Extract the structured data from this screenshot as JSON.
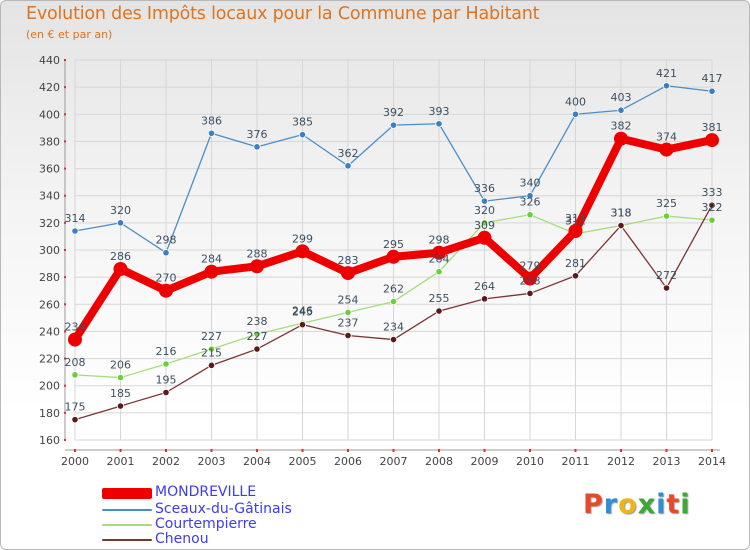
{
  "title": "Evolution des Impôts locaux pour la Commune par Habitant",
  "subtitle": "(en € et par an)",
  "logo": "Proxiti",
  "logo_letters": [
    {
      "ch": "P",
      "color": "#e8492a"
    },
    {
      "ch": "r",
      "color": "#2f8fd6"
    },
    {
      "ch": "o",
      "color": "#f0b417"
    },
    {
      "ch": "x",
      "color": "#3aaa35"
    },
    {
      "ch": "i",
      "color": "#2f8fd6"
    },
    {
      "ch": "t",
      "color": "#e8492a"
    },
    {
      "ch": "i",
      "color": "#3aaa35"
    }
  ],
  "chart_data": {
    "type": "line",
    "categories": [
      "2000",
      "2001",
      "2002",
      "2003",
      "2004",
      "2005",
      "2006",
      "2007",
      "2008",
      "2009",
      "2010",
      "2011",
      "2012",
      "2013",
      "2014"
    ],
    "ylim": [
      160,
      440
    ],
    "yticks": [
      160,
      180,
      200,
      220,
      240,
      260,
      280,
      300,
      320,
      340,
      360,
      380,
      400,
      420,
      440
    ],
    "grid": true,
    "legend_position": "bottom-left",
    "series": [
      {
        "name": "Sceaux-du-Gâtinais",
        "color": "#4a8ec9",
        "marker": "#3a7fc0",
        "labelColor": "#3d4f5f",
        "values": [
          314,
          320,
          298,
          386,
          376,
          385,
          362,
          392,
          393,
          336,
          340,
          400,
          403,
          421,
          417
        ],
        "labels": [
          "314",
          "320",
          "298",
          "386",
          "376",
          "385",
          "362",
          "392",
          "393",
          "336",
          "340",
          "400",
          "403",
          "421",
          "417"
        ]
      },
      {
        "name": "Courtempierre",
        "color": "#a6dc7e",
        "marker": "#6ccf3a",
        "labelColor": "#3d4f5f",
        "values": [
          208,
          206,
          216,
          227,
          238,
          246,
          254,
          262,
          284,
          320,
          326,
          312,
          318,
          325,
          322
        ],
        "labels": [
          "208",
          "206",
          "216",
          "227",
          "238",
          "246",
          "254",
          "262",
          "284",
          "320",
          "326",
          "312",
          "318",
          "325",
          "322"
        ]
      },
      {
        "name": "Chenou",
        "color": "#7a3535",
        "marker": "#5a1a1a",
        "labelColor": "#3d4f5f",
        "values": [
          175,
          185,
          195,
          215,
          227,
          245,
          237,
          234,
          255,
          264,
          268,
          281,
          318,
          272,
          333
        ],
        "labels": [
          "175",
          "185",
          "195",
          "215",
          "227",
          "245",
          "237",
          "234",
          "255",
          "264",
          "268",
          "281",
          "318",
          "272",
          "333"
        ]
      },
      {
        "name": "MONDREVILLE",
        "color": "#ee0000",
        "marker": "#ee0000",
        "labelColor": "#3d4f5f",
        "values": [
          234,
          286,
          270,
          284,
          288,
          299,
          283,
          295,
          298,
          309,
          279,
          314,
          382,
          374,
          381
        ],
        "labels": [
          "234",
          "286",
          "270",
          "284",
          "288",
          "299",
          "283",
          "295",
          "298",
          "309",
          "279",
          "314",
          "382",
          "374",
          "381"
        ]
      }
    ]
  },
  "legend": [
    {
      "label": "MONDREVILLE",
      "color": "#ee0000",
      "textColor": "#3c3cf0"
    },
    {
      "label": "Sceaux-du-Gâtinais",
      "color": "#4a8ec9",
      "textColor": "#3c3cf0"
    },
    {
      "label": "Courtempierre",
      "color": "#a6dc7e",
      "textColor": "#3c3cf0"
    },
    {
      "label": "Chenou",
      "color": "#7a3535",
      "textColor": "#3c3cf0"
    }
  ]
}
